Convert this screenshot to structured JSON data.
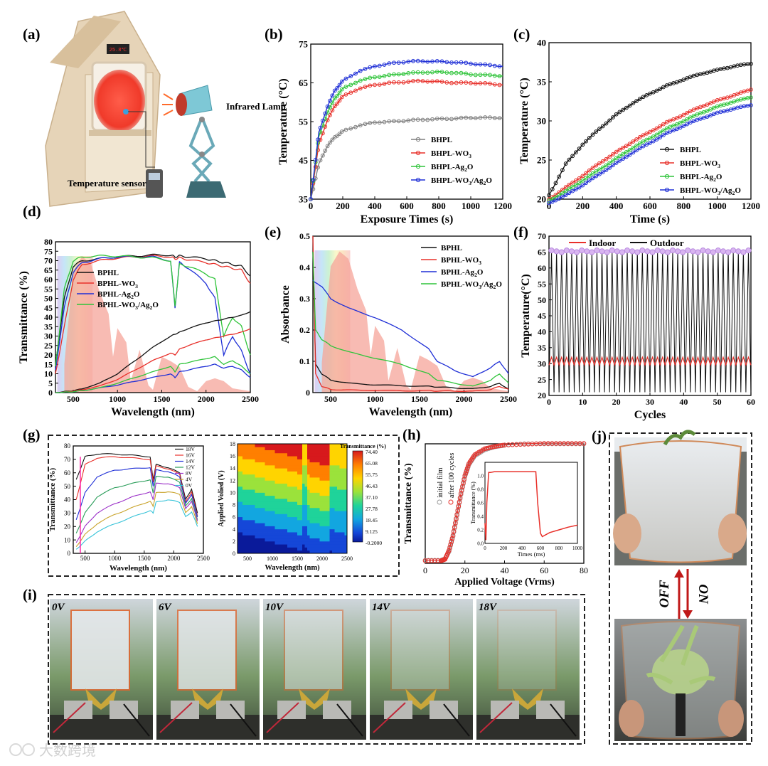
{
  "figure": {
    "panel_labels": [
      "(a)",
      "(b)",
      "(c)",
      "(d)",
      "(e)",
      "(f)",
      "(g)",
      "(h)",
      "(i)",
      "(j)"
    ],
    "watermark": "大数跨境"
  },
  "panel_a": {
    "clock_text": "25.8℃",
    "infrared_lamp_label": "Infrared Lamp",
    "sensor_label": "Temperature sensor"
  },
  "panel_i": {
    "voltages": [
      "0V",
      "6V",
      "10V",
      "14V",
      "18V"
    ]
  },
  "panel_j": {
    "off_label": "OFF",
    "on_label": "ON"
  },
  "chart_data": [
    {
      "id": "b",
      "type": "line",
      "xlabel": "Exposure Times (s)",
      "ylabel": "Temperature (°C)",
      "xlim": [
        0,
        1200
      ],
      "ylim": [
        35,
        75
      ],
      "xticks": [
        0,
        200,
        400,
        600,
        800,
        1000,
        1200
      ],
      "yticks": [
        35,
        45,
        55,
        65,
        75
      ],
      "legend_position": "lower-right",
      "x": [
        0,
        50,
        100,
        150,
        200,
        300,
        400,
        500,
        600,
        700,
        800,
        900,
        1000,
        1100,
        1200
      ],
      "series": [
        {
          "name": "BHPL",
          "legend": [
            "BHPL",
            ""
          ],
          "color": "#7f7f7f",
          "values": [
            35,
            44,
            48.5,
            51,
            52.5,
            54,
            54.8,
            55,
            55.3,
            55.5,
            55.7,
            55.8,
            56,
            56,
            56
          ]
        },
        {
          "name": "BHPL-WO3",
          "legend": [
            "BHPL-WO",
            "3"
          ],
          "color": "#e8302a",
          "values": [
            35,
            49,
            55,
            59,
            61.5,
            63.5,
            64.5,
            65,
            65.3,
            65.5,
            65.3,
            65,
            65,
            64.8,
            64.5
          ]
        },
        {
          "name": "BHPL-Ag2O",
          "legend": [
            "BHPL-Ag",
            "2",
            "O"
          ],
          "color": "#2fc43a",
          "values": [
            35,
            51,
            57,
            61,
            63.5,
            65.5,
            66.5,
            67,
            67.5,
            67.7,
            67.8,
            67.6,
            67.2,
            67,
            66.8
          ]
        },
        {
          "name": "BHPL-WO3/Ag2O",
          "legend": [
            "BHPL-WO",
            "3",
            "/Ag",
            "2",
            "O"
          ],
          "color": "#1f2fd6",
          "values": [
            35,
            52,
            58.5,
            63,
            65.5,
            68,
            69.3,
            70,
            70.5,
            70.6,
            70.5,
            70.3,
            70,
            69.6,
            69.3
          ]
        }
      ]
    },
    {
      "id": "c",
      "type": "line",
      "xlabel": "Time (s)",
      "ylabel": "Temperature (°C)",
      "xlim": [
        0,
        1200
      ],
      "ylim": [
        20,
        40
      ],
      "xticks": [
        0,
        200,
        400,
        600,
        800,
        1000,
        1200
      ],
      "yticks": [
        20,
        25,
        30,
        35,
        40
      ],
      "legend_position": "lower-right",
      "x": [
        0,
        100,
        200,
        300,
        400,
        500,
        600,
        700,
        800,
        900,
        1000,
        1100,
        1200
      ],
      "series": [
        {
          "name": "BHPL",
          "legend": [
            "BHPL",
            ""
          ],
          "color": "#111111",
          "values": [
            20.5,
            24.5,
            27,
            29,
            30.8,
            32.3,
            33.5,
            34.5,
            35.3,
            36,
            36.5,
            37,
            37.3
          ]
        },
        {
          "name": "BHPL-WO3",
          "legend": [
            "BHPL-WO",
            "3"
          ],
          "color": "#e8302a",
          "values": [
            20,
            21.5,
            23,
            24.6,
            26,
            27.4,
            28.6,
            29.8,
            30.8,
            31.8,
            32.6,
            33.3,
            34
          ]
        },
        {
          "name": "BHPL-Ag2O",
          "legend": [
            "BHPL-Ag",
            "2",
            "O"
          ],
          "color": "#2fc43a",
          "values": [
            19.8,
            21,
            22.4,
            23.8,
            25.2,
            26.6,
            27.8,
            29,
            30,
            31,
            31.8,
            32.5,
            33
          ]
        },
        {
          "name": "BHPL-WO3/Ag2O",
          "legend": [
            "BHPL-WO",
            "3",
            "/Ag",
            "2",
            "O"
          ],
          "color": "#1f2fd6",
          "values": [
            19.5,
            20.5,
            21.8,
            23.2,
            24.6,
            26,
            27.2,
            28.4,
            29.4,
            30.3,
            31,
            31.6,
            32
          ]
        }
      ]
    },
    {
      "id": "d",
      "type": "line",
      "xlabel": "Wavelength (nm)",
      "ylabel": "Transmittance (%)",
      "xlim": [
        300,
        2500
      ],
      "ylim": [
        0,
        80
      ],
      "xticks": [
        500,
        1000,
        1500,
        2000,
        2500
      ],
      "yticks": [
        0,
        5,
        10,
        15,
        20,
        25,
        30,
        35,
        40,
        45,
        50,
        55,
        60,
        65,
        70,
        75,
        80
      ],
      "legend_position": "center-left",
      "x": [
        300,
        400,
        500,
        600,
        800,
        1000,
        1200,
        1400,
        1600,
        1650,
        1700,
        1800,
        2000,
        2100,
        2200,
        2300,
        2400,
        2500
      ],
      "series": [
        {
          "name": "BPHL (on)",
          "legend": [
            "BPHL",
            ""
          ],
          "color": "#111111",
          "values": [
            15,
            50,
            67,
            70,
            71,
            72,
            72.5,
            73,
            73,
            72,
            72.5,
            72,
            71,
            70,
            69,
            68,
            67,
            62
          ]
        },
        {
          "name": "BPHL-WO3 (on)",
          "legend": [
            "BPHL-WO",
            "3"
          ],
          "color": "#e8302a",
          "values": [
            10,
            35,
            60,
            68,
            70,
            71.5,
            72,
            72.5,
            72,
            71,
            71.5,
            70.5,
            69,
            68,
            67,
            66,
            65,
            58
          ]
        },
        {
          "name": "BPHL-Ag2O (on)",
          "legend": [
            "BPHL-Ag",
            "2",
            "O"
          ],
          "color": "#1f2fd6",
          "values": [
            12,
            45,
            64,
            69,
            71,
            72,
            72,
            72,
            70,
            45,
            69,
            66,
            58,
            50,
            20,
            30,
            22,
            10
          ]
        },
        {
          "name": "BPHL-WO3/Ag2O (on)",
          "legend": [
            "BPHL-WO",
            "3",
            "/Ag",
            "2",
            "O"
          ],
          "color": "#2fc43a",
          "values": [
            14,
            55,
            70,
            72,
            72.5,
            72.5,
            72,
            71.5,
            70,
            46,
            68,
            67,
            63,
            60,
            30,
            40,
            35,
            20
          ]
        },
        {
          "name": "BPHL (off)",
          "color": "#111111",
          "values": [
            0,
            0.5,
            1,
            2,
            5,
            10,
            17,
            24,
            30,
            31,
            32,
            34,
            37,
            38,
            39,
            40,
            41,
            43
          ]
        },
        {
          "name": "BPHL-WO3 (off)",
          "color": "#e8302a",
          "values": [
            0,
            0.3,
            0.8,
            1.5,
            3.5,
            7,
            12,
            17,
            21,
            20,
            23,
            25,
            28,
            29,
            30,
            31,
            32,
            34
          ]
        },
        {
          "name": "BPHL-Ag2O (off)",
          "color": "#1f2fd6",
          "values": [
            0,
            0.2,
            0.5,
            1,
            2.5,
            4,
            6,
            8,
            10,
            8,
            11,
            12,
            14,
            15,
            13,
            14,
            12,
            8
          ]
        },
        {
          "name": "BPHL-WO3/Ag2O (off)",
          "color": "#2fc43a",
          "values": [
            0,
            0.2,
            0.5,
            1,
            2.5,
            5,
            8,
            11,
            14,
            11,
            15,
            16,
            18,
            19,
            15,
            17,
            14,
            10
          ]
        }
      ]
    },
    {
      "id": "e",
      "type": "line",
      "xlabel": "Wavelength (nm)",
      "ylabel": "Absorbance",
      "xlim": [
        300,
        2500
      ],
      "ylim": [
        0,
        0.5
      ],
      "xticks": [
        500,
        1000,
        1500,
        2000,
        2500
      ],
      "yticks": [
        0.0,
        0.1,
        0.2,
        0.3,
        0.4,
        0.5
      ],
      "legend_position": "top-right",
      "x": [
        300,
        330,
        400,
        500,
        700,
        1000,
        1300,
        1600,
        1700,
        1900,
        2100,
        2300,
        2400,
        2500
      ],
      "series": [
        {
          "name": "BPHL",
          "legend": [
            "BPHL",
            ""
          ],
          "color": "#111111",
          "values": [
            0.45,
            0.09,
            0.06,
            0.04,
            0.03,
            0.025,
            0.022,
            0.02,
            0.018,
            0.015,
            0.012,
            0.02,
            0.03,
            0.01
          ]
        },
        {
          "name": "BPHL-WO3",
          "legend": [
            "BPHL-WO",
            "3"
          ],
          "color": "#e8302a",
          "values": [
            0.5,
            0.06,
            0.02,
            0.01,
            0.008,
            0.007,
            0.006,
            0.006,
            0.005,
            0.005,
            0.004,
            0.01,
            0.02,
            0.01
          ]
        },
        {
          "name": "BPHL-Ag2O",
          "legend": [
            "BPHL-Ag",
            "2",
            "O"
          ],
          "color": "#1f2fd6",
          "values": [
            0.36,
            0.35,
            0.34,
            0.3,
            0.27,
            0.24,
            0.2,
            0.14,
            0.1,
            0.07,
            0.05,
            0.08,
            0.1,
            0.06
          ]
        },
        {
          "name": "BPHL-WO3/Ag2O",
          "legend": [
            "BPHL-WO",
            "3",
            "/Ag",
            "2",
            "O"
          ],
          "color": "#2fc43a",
          "values": [
            0.45,
            0.2,
            0.17,
            0.15,
            0.13,
            0.11,
            0.09,
            0.06,
            0.04,
            0.03,
            0.02,
            0.04,
            0.06,
            0.03
          ]
        }
      ]
    },
    {
      "id": "f",
      "type": "line",
      "xlabel": "Cycles",
      "ylabel": "Temperature(°C)",
      "xlim": [
        0,
        60
      ],
      "ylim": [
        20,
        70
      ],
      "xticks": [
        0,
        10,
        20,
        30,
        40,
        50,
        60
      ],
      "yticks": [
        20,
        25,
        30,
        35,
        40,
        45,
        50,
        55,
        60,
        65,
        70
      ],
      "legend_position": "top-left",
      "series": [
        {
          "name": "Indoor",
          "color": "#e8302a",
          "low": 29.5,
          "high": 32
        },
        {
          "name": "Outdoor",
          "color": "#111111",
          "low": 21,
          "high": 65.5
        }
      ],
      "cycle_count": 40,
      "peak_marker_value": 65.5
    },
    {
      "id": "g1",
      "type": "line",
      "xlabel": "Wavelength (nm)",
      "ylabel": "Transmittance (%)",
      "xlim": [
        300,
        2500
      ],
      "ylim": [
        0,
        80
      ],
      "xticks": [
        500,
        1000,
        1500,
        2000,
        2500
      ],
      "yticks": [
        0,
        10,
        20,
        30,
        40,
        50,
        60,
        70,
        80
      ],
      "legend_position": "top-right",
      "x": [
        350,
        500,
        700,
        1000,
        1300,
        1600,
        1650,
        1700,
        1900,
        2100,
        2200,
        2300,
        2400
      ],
      "series": [
        {
          "name": "18V",
          "color": "#111111",
          "values": [
            55,
            72,
            74,
            74,
            73,
            72,
            55,
            66,
            64,
            60,
            40,
            48,
            30
          ]
        },
        {
          "name": "16V",
          "color": "#e8302a",
          "values": [
            40,
            66,
            71,
            72,
            71,
            70,
            53,
            65,
            63,
            59,
            38,
            46,
            28
          ]
        },
        {
          "name": "14V",
          "color": "#1f2fd6",
          "values": [
            25,
            45,
            57,
            62,
            63,
            64,
            50,
            62,
            61,
            57,
            37,
            44,
            27
          ]
        },
        {
          "name": "12V",
          "color": "#2a9d5a",
          "values": [
            15,
            30,
            42,
            49,
            52,
            55,
            45,
            57,
            57,
            53,
            35,
            41,
            25
          ]
        },
        {
          "name": "8V",
          "color": "#9b30c8",
          "values": [
            8,
            20,
            30,
            37,
            42,
            46,
            40,
            52,
            52,
            49,
            33,
            39,
            24
          ]
        },
        {
          "name": "4V",
          "color": "#c9a32a",
          "values": [
            5,
            14,
            22,
            29,
            34,
            39,
            35,
            45,
            46,
            44,
            30,
            35,
            22
          ]
        },
        {
          "name": "0V",
          "color": "#36c3d8",
          "values": [
            3,
            9,
            16,
            22,
            27,
            32,
            30,
            38,
            40,
            38,
            27,
            31,
            20
          ]
        }
      ]
    },
    {
      "id": "g2",
      "type": "heatmap",
      "xlabel": "Wavelength (nm)",
      "ylabel": "Applied Volied (V)",
      "colorbar_title": "Transmittance (%)",
      "xlim": [
        300,
        2500
      ],
      "ylim": [
        0,
        18
      ],
      "xticks": [
        500,
        1000,
        1500,
        2000,
        2500
      ],
      "yticks": [
        0,
        2,
        4,
        6,
        8,
        10,
        12,
        14,
        16,
        18
      ],
      "colorbar_ticks": [
        "74.40",
        "65.08",
        "55.75",
        "46.43",
        "37.10",
        "27.78",
        "18.45",
        "9.125",
        "-0.2000"
      ]
    },
    {
      "id": "h",
      "type": "line",
      "xlabel": "Applied Voltage (Vrms)",
      "ylabel": "Transmittance (%)",
      "xlim": [
        0,
        80
      ],
      "ylim": [
        0,
        80
      ],
      "xticks": [
        0,
        20,
        40,
        60,
        80
      ],
      "legend_position": "left-vertical",
      "x": [
        0,
        8,
        10,
        12,
        14,
        16,
        18,
        20,
        22,
        25,
        30,
        35,
        40,
        50,
        60,
        70,
        80
      ],
      "series": [
        {
          "name": "initial film",
          "color": "#9a9a9a",
          "values": [
            2,
            2,
            3,
            8,
            18,
            32,
            46,
            58,
            66,
            72,
            76,
            78,
            79,
            80,
            80,
            80,
            80
          ]
        },
        {
          "name": "after 100 cycles",
          "color": "#e8302a",
          "values": [
            2,
            2,
            3,
            9,
            19,
            33,
            47,
            59,
            67,
            73,
            77,
            78.5,
            79.5,
            80,
            80.5,
            80.5,
            80.5
          ]
        }
      ],
      "inset": {
        "xlabel": "Times (ms)",
        "ylabel": "Transmittance (%)",
        "xlim": [
          0,
          1000
        ],
        "ylim": [
          0,
          1.2
        ],
        "xticks": [
          0,
          200,
          400,
          600,
          800,
          1000
        ],
        "yticks": [
          0.0,
          0.2,
          0.4,
          0.6,
          0.8,
          1.0
        ],
        "x": [
          0,
          10,
          20,
          40,
          60,
          100,
          300,
          550,
          570,
          600,
          620,
          700,
          800,
          900,
          1000
        ],
        "values": [
          0.3,
          0.05,
          0.6,
          1.05,
          1.05,
          1.06,
          1.06,
          1.06,
          0.6,
          0.15,
          0.1,
          0.16,
          0.2,
          0.24,
          0.27
        ]
      }
    }
  ]
}
